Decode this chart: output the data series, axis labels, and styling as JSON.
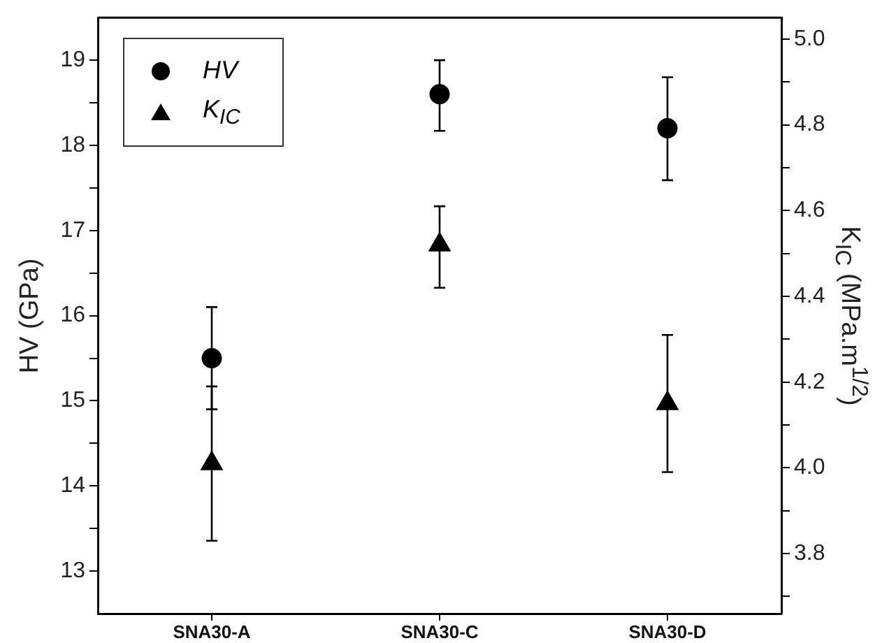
{
  "chart_data": {
    "type": "scatter",
    "ylabel": "HV (GPa)",
    "y2label": "K$_{IC}$ (MPa.m$^{1/2}$)",
    "categories": [
      "SNA30-A",
      "SNA30-C",
      "SNA30-D"
    ],
    "series": [
      {
        "name": "HV",
        "color": "#000000",
        "marker": "circle",
        "values": [
          15.5,
          18.6,
          18.2
        ],
        "errors": [
          0.6,
          [
            18.17,
            19.0
          ],
          [
            17.59,
            18.8
          ]
        ]
      },
      {
        "name": "K$_{IC}$",
        "color": "#000000",
        "marker": "triangle",
        "axis": "y2",
        "values": [
          4.01,
          4.52,
          4.15
        ],
        "errors": [
          [
            3.83,
            4.19
          ],
          [
            4.42,
            4.61
          ],
          [
            3.99,
            4.31
          ]
        ]
      }
    ],
    "ylim": [
      12.5,
      19.5
    ],
    "yticks": [
      13,
      {
        "value": 13.5,
        "label": null
      },
      14,
      {
        "value": 14.5,
        "label": null
      },
      15,
      {
        "value": 15.5,
        "label": null
      },
      16,
      {
        "value": 16.5,
        "label": null
      },
      17,
      {
        "value": 17.5,
        "label": null
      },
      18,
      {
        "value": 18.5,
        "label": null
      },
      19
    ],
    "y2lim": [
      3.66,
      5.05
    ],
    "y2ticks": [
      {
        "value": 3.7,
        "label": null
      },
      {
        "value": 3.8,
        "label": "3.8"
      },
      {
        "value": 3.9,
        "label": null
      },
      {
        "value": 4.0,
        "label": "4.0"
      },
      {
        "value": 4.1,
        "label": null
      },
      {
        "value": 4.2,
        "label": "4.2"
      },
      {
        "value": 4.3,
        "label": null
      },
      {
        "value": 4.4,
        "label": "4.4"
      },
      {
        "value": 4.5,
        "label": null
      },
      {
        "value": 4.6,
        "label": "4.6"
      },
      {
        "value": 4.7,
        "label": null
      },
      {
        "value": 4.8,
        "label": "4.8"
      },
      {
        "value": 4.9,
        "label": null
      },
      {
        "value": 5.0,
        "label": "5.0"
      }
    ],
    "grid": false,
    "legend": "top left"
  }
}
